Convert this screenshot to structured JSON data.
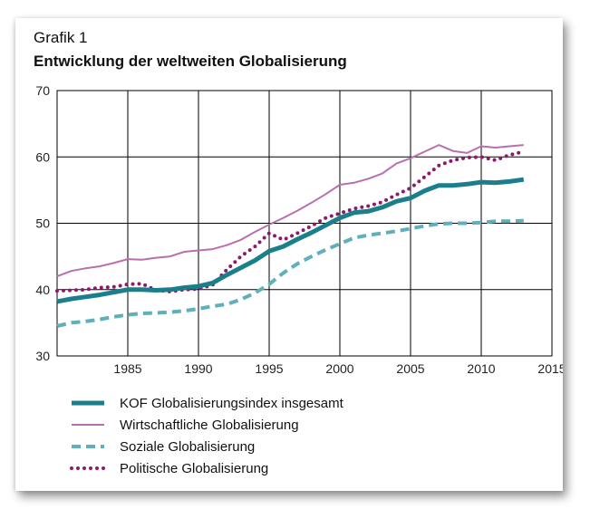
{
  "figure": {
    "label": "Grafik 1",
    "title": "Entwicklung der weltweiten Globalisierung"
  },
  "chart_data": {
    "type": "line",
    "xlim": [
      1980,
      2015
    ],
    "ylim": [
      30,
      70
    ],
    "x_ticks": [
      1985,
      1990,
      1995,
      2000,
      2005,
      2010,
      2015
    ],
    "y_ticks": [
      30,
      40,
      50,
      60,
      70
    ],
    "grid": true,
    "legend_position": "bottom",
    "x": [
      1980,
      1981,
      1982,
      1983,
      1984,
      1985,
      1986,
      1987,
      1988,
      1989,
      1990,
      1991,
      1992,
      1993,
      1994,
      1995,
      1996,
      1997,
      1998,
      1999,
      2000,
      2001,
      2002,
      2003,
      2004,
      2005,
      2006,
      2007,
      2008,
      2009,
      2010,
      2011,
      2012,
      2013
    ],
    "series": [
      {
        "name": "KOF Globalisierungsindex insgesamt",
        "style": "thick-solid",
        "color": "#1a7f8a",
        "values": [
          38.2,
          38.6,
          38.9,
          39.2,
          39.6,
          40.0,
          40.0,
          39.9,
          40.0,
          40.3,
          40.5,
          41.0,
          42.2,
          43.3,
          44.4,
          45.8,
          46.5,
          47.6,
          48.6,
          49.7,
          50.8,
          51.6,
          51.8,
          52.4,
          53.3,
          53.8,
          54.9,
          55.7,
          55.7,
          55.9,
          56.2,
          56.1,
          56.3,
          56.6
        ]
      },
      {
        "name": "Wirtschaftliche Globalisierung",
        "style": "thin-solid",
        "color": "#b86fb0",
        "values": [
          42.0,
          42.8,
          43.2,
          43.5,
          44.0,
          44.6,
          44.5,
          44.8,
          45.0,
          45.7,
          45.9,
          46.1,
          46.7,
          47.5,
          48.7,
          49.8,
          50.8,
          51.9,
          53.1,
          54.4,
          55.8,
          56.1,
          56.7,
          57.5,
          59.0,
          59.8,
          60.8,
          61.8,
          60.9,
          60.6,
          61.6,
          61.4,
          61.6,
          61.8
        ]
      },
      {
        "name": "Soziale Globalisierung",
        "style": "dashed",
        "color": "#5fb0bb",
        "values": [
          34.5,
          35.0,
          35.2,
          35.5,
          35.9,
          36.2,
          36.4,
          36.5,
          36.6,
          36.8,
          37.1,
          37.5,
          37.8,
          38.5,
          39.5,
          40.8,
          42.5,
          43.9,
          45.0,
          46.0,
          46.9,
          47.8,
          48.2,
          48.5,
          48.8,
          49.2,
          49.6,
          49.9,
          50.0,
          50.0,
          50.1,
          50.3,
          50.3,
          50.4
        ]
      },
      {
        "name": "Politische Globalisierung",
        "style": "dotted",
        "color": "#8b1a6b",
        "values": [
          39.8,
          39.9,
          40.0,
          40.3,
          40.4,
          40.8,
          40.9,
          39.9,
          39.7,
          40.0,
          40.1,
          40.7,
          43.0,
          45.0,
          46.5,
          48.5,
          47.5,
          48.5,
          49.6,
          50.8,
          51.5,
          52.2,
          52.6,
          53.2,
          54.3,
          55.3,
          57.0,
          58.7,
          59.5,
          59.9,
          60.0,
          59.5,
          60.3,
          60.8
        ]
      }
    ]
  }
}
